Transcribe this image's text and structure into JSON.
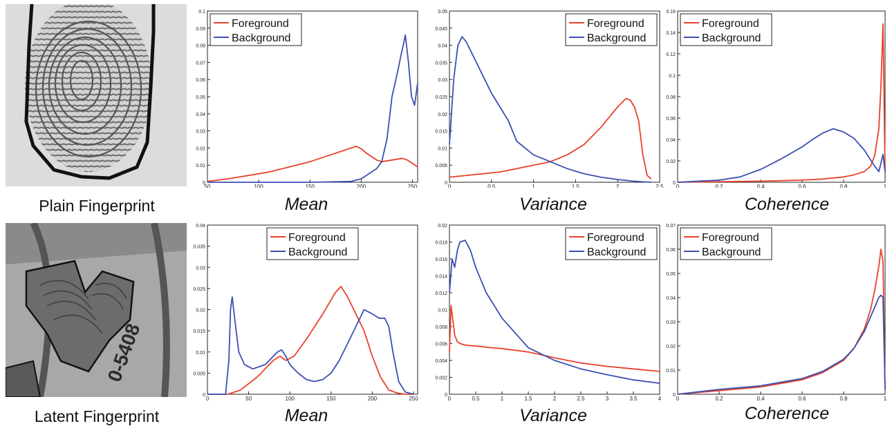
{
  "figure": {
    "colors": {
      "foreground": "#e8402a",
      "background": "#3a4fb0"
    },
    "captions": {
      "plain": "Plain Fingerprint",
      "latent": "Latent Fingerprint"
    },
    "images": [
      {
        "name": "plain-fingerprint-image",
        "kind": "plain"
      },
      {
        "name": "latent-fingerprint-image",
        "kind": "latent"
      }
    ]
  },
  "chart_data": [
    {
      "type": "line",
      "xlabel": "Mean",
      "xlim": [
        50,
        255
      ],
      "ylim": [
        0,
        0.1
      ],
      "xticks": [
        "50",
        "100",
        "150",
        "200",
        "250"
      ],
      "xtick_values": [
        50,
        100,
        150,
        200,
        250
      ],
      "yticks": [
        "0",
        "0.01",
        "0.02",
        "0.03",
        "0.04",
        "0.05",
        "0.06",
        "0.07",
        "0.08",
        "0.09",
        "0.1"
      ],
      "ytick_values": [
        0,
        0.01,
        0.02,
        0.03,
        0.04,
        0.05,
        0.06,
        0.07,
        0.08,
        0.09,
        0.1
      ],
      "legend": "top-left",
      "series": [
        {
          "name": "Foreground",
          "x": [
            50,
            70,
            90,
            110,
            130,
            150,
            160,
            170,
            180,
            190,
            195,
            200,
            205,
            210,
            215,
            220,
            230,
            240,
            245,
            250,
            255
          ],
          "y": [
            0.0005,
            0.002,
            0.004,
            0.006,
            0.009,
            0.012,
            0.014,
            0.016,
            0.018,
            0.02,
            0.021,
            0.0195,
            0.017,
            0.015,
            0.013,
            0.012,
            0.013,
            0.014,
            0.013,
            0.011,
            0.009
          ]
        },
        {
          "name": "Background",
          "x": [
            50,
            100,
            150,
            190,
            200,
            205,
            210,
            215,
            220,
            225,
            228,
            230,
            233,
            236,
            239,
            241,
            243,
            246,
            249,
            252,
            255
          ],
          "y": [
            0,
            0,
            0,
            0.0005,
            0.002,
            0.004,
            0.006,
            0.008,
            0.012,
            0.025,
            0.04,
            0.05,
            0.058,
            0.066,
            0.075,
            0.08,
            0.086,
            0.07,
            0.05,
            0.045,
            0.058
          ]
        }
      ]
    },
    {
      "type": "line",
      "xlabel": "Variance",
      "xlim": [
        0,
        2.5
      ],
      "ylim": [
        0,
        0.05
      ],
      "xticks": [
        "0",
        "0.5",
        "1",
        "1.5",
        "2",
        "2.5"
      ],
      "xtick_values": [
        0,
        0.5,
        1,
        1.5,
        2,
        2.5
      ],
      "yticks": [
        "0",
        "0.005",
        "0.01",
        "0.015",
        "0.02",
        "0.025",
        "0.03",
        "0.035",
        "0.04",
        "0.045",
        "0.05"
      ],
      "ytick_values": [
        0,
        0.005,
        0.01,
        0.015,
        0.02,
        0.025,
        0.03,
        0.035,
        0.04,
        0.045,
        0.05
      ],
      "legend": "top-right",
      "series": [
        {
          "name": "Foreground",
          "x": [
            0,
            0.2,
            0.4,
            0.6,
            0.8,
            1.0,
            1.2,
            1.4,
            1.6,
            1.8,
            1.9,
            2.0,
            2.1,
            2.15,
            2.2,
            2.25,
            2.3,
            2.35,
            2.4
          ],
          "y": [
            0.0015,
            0.002,
            0.0025,
            0.003,
            0.004,
            0.005,
            0.006,
            0.008,
            0.011,
            0.016,
            0.019,
            0.022,
            0.0245,
            0.024,
            0.022,
            0.018,
            0.008,
            0.002,
            0.001
          ]
        },
        {
          "name": "Background",
          "x": [
            0,
            0.05,
            0.1,
            0.15,
            0.2,
            0.3,
            0.4,
            0.5,
            0.6,
            0.7,
            0.8,
            0.9,
            1.0,
            1.2,
            1.4,
            1.6,
            1.8,
            2.0,
            2.2,
            2.4
          ],
          "y": [
            0.011,
            0.03,
            0.04,
            0.0425,
            0.041,
            0.036,
            0.031,
            0.026,
            0.022,
            0.018,
            0.012,
            0.01,
            0.008,
            0.006,
            0.004,
            0.0025,
            0.0015,
            0.0008,
            0.0003,
            0
          ]
        }
      ]
    },
    {
      "type": "line",
      "xlabel": "Coherence",
      "xlim": [
        0,
        1
      ],
      "ylim": [
        0,
        0.16
      ],
      "xticks": [
        "0",
        "0.2",
        "0.4",
        "0.6",
        "0.8",
        "1"
      ],
      "xtick_values": [
        0,
        0.2,
        0.4,
        0.6,
        0.8,
        1
      ],
      "yticks": [
        "0",
        "0.02",
        "0.04",
        "0.06",
        "0.08",
        "0.1",
        "0.12",
        "0.14",
        "0.16"
      ],
      "ytick_values": [
        0,
        0.02,
        0.04,
        0.06,
        0.08,
        0.1,
        0.12,
        0.14,
        0.16
      ],
      "legend": "top-left",
      "series": [
        {
          "name": "Foreground",
          "x": [
            0,
            0.2,
            0.4,
            0.6,
            0.7,
            0.8,
            0.85,
            0.9,
            0.93,
            0.95,
            0.97,
            0.98,
            0.99,
            1.0
          ],
          "y": [
            0,
            0.0005,
            0.001,
            0.002,
            0.003,
            0.005,
            0.007,
            0.01,
            0.015,
            0.025,
            0.05,
            0.09,
            0.148,
            0.01
          ]
        },
        {
          "name": "Background",
          "x": [
            0,
            0.2,
            0.3,
            0.4,
            0.5,
            0.6,
            0.65,
            0.7,
            0.75,
            0.8,
            0.85,
            0.9,
            0.95,
            0.97,
            0.99,
            1.0
          ],
          "y": [
            0,
            0.002,
            0.005,
            0.012,
            0.022,
            0.033,
            0.04,
            0.046,
            0.05,
            0.047,
            0.041,
            0.03,
            0.015,
            0.01,
            0.026,
            0.01
          ]
        }
      ]
    },
    {
      "type": "line",
      "xlabel": "Mean",
      "xlim": [
        0,
        255
      ],
      "ylim": [
        0,
        0.04
      ],
      "xticks": [
        "0",
        "50",
        "100",
        "150",
        "200",
        "250"
      ],
      "xtick_values": [
        0,
        50,
        100,
        150,
        200,
        250
      ],
      "yticks": [
        "0",
        "0.005",
        "0.01",
        "0.015",
        "0.02",
        "0.025",
        "0.03",
        "0.035",
        "0.04"
      ],
      "ytick_values": [
        0,
        0.005,
        0.01,
        0.015,
        0.02,
        0.025,
        0.03,
        0.035,
        0.04
      ],
      "legend": "top-center",
      "series": [
        {
          "name": "Foreground",
          "x": [
            0,
            25,
            40,
            60,
            80,
            88,
            95,
            105,
            120,
            140,
            155,
            162,
            170,
            180,
            190,
            200,
            210,
            220,
            230,
            240,
            250
          ],
          "y": [
            0,
            0,
            0.001,
            0.004,
            0.008,
            0.009,
            0.008,
            0.009,
            0.013,
            0.019,
            0.024,
            0.0255,
            0.023,
            0.019,
            0.015,
            0.009,
            0.004,
            0.001,
            0.0003,
            0,
            0
          ]
        },
        {
          "name": "Background",
          "x": [
            0,
            22,
            26,
            28,
            30,
            33,
            38,
            45,
            55,
            70,
            85,
            90,
            95,
            100,
            110,
            120,
            130,
            140,
            150,
            160,
            170,
            180,
            190,
            200,
            208,
            215,
            220,
            225,
            232,
            240,
            250
          ],
          "y": [
            0,
            0,
            0.008,
            0.02,
            0.023,
            0.018,
            0.01,
            0.007,
            0.006,
            0.007,
            0.01,
            0.0105,
            0.009,
            0.007,
            0.005,
            0.0035,
            0.003,
            0.0035,
            0.005,
            0.008,
            0.012,
            0.016,
            0.02,
            0.019,
            0.018,
            0.018,
            0.016,
            0.01,
            0.003,
            0.0005,
            0
          ]
        }
      ]
    },
    {
      "type": "line",
      "xlabel": "Variance",
      "xlim": [
        0,
        4
      ],
      "ylim": [
        0,
        0.02
      ],
      "xticks": [
        "0",
        "0.5",
        "1",
        "1.5",
        "2",
        "2.5",
        "3",
        "3.5",
        "4"
      ],
      "xtick_values": [
        0,
        0.5,
        1,
        1.5,
        2,
        2.5,
        3,
        3.5,
        4
      ],
      "yticks": [
        "0",
        "0.002",
        "0.004",
        "0.006",
        "0.008",
        "0.01",
        "0.012",
        "0.014",
        "0.016",
        "0.018",
        "0.02"
      ],
      "ytick_values": [
        0,
        0.002,
        0.004,
        0.006,
        0.008,
        0.01,
        0.012,
        0.014,
        0.016,
        0.018,
        0.02
      ],
      "legend": "top-right",
      "series": [
        {
          "name": "Foreground",
          "x": [
            0,
            0.03,
            0.06,
            0.1,
            0.15,
            0.2,
            0.3,
            0.5,
            0.8,
            1.0,
            1.5,
            2.0,
            2.5,
            3.0,
            3.5,
            4.0
          ],
          "y": [
            0.005,
            0.0105,
            0.009,
            0.007,
            0.0062,
            0.006,
            0.0058,
            0.0057,
            0.0055,
            0.0054,
            0.005,
            0.0043,
            0.0037,
            0.0033,
            0.003,
            0.0027
          ]
        },
        {
          "name": "Background",
          "x": [
            0,
            0.05,
            0.1,
            0.15,
            0.2,
            0.3,
            0.4,
            0.5,
            0.7,
            1.0,
            1.5,
            2.0,
            2.5,
            3.0,
            3.5,
            4.0
          ],
          "y": [
            0.012,
            0.016,
            0.015,
            0.017,
            0.018,
            0.0182,
            0.017,
            0.015,
            0.012,
            0.009,
            0.0055,
            0.004,
            0.003,
            0.0023,
            0.0017,
            0.0013
          ]
        }
      ]
    },
    {
      "type": "line",
      "xlabel": "Coherence",
      "xlim": [
        0,
        1
      ],
      "ylim": [
        0,
        0.07
      ],
      "xticks": [
        "0",
        "0.2",
        "0.4",
        "0.6",
        "0.8",
        "1"
      ],
      "xtick_values": [
        0,
        0.2,
        0.4,
        0.6,
        0.8,
        1
      ],
      "yticks": [
        "0",
        "0.01",
        "0.02",
        "0.03",
        "0.04",
        "0.05",
        "0.06",
        "0.07"
      ],
      "ytick_values": [
        0,
        0.01,
        0.02,
        0.03,
        0.04,
        0.05,
        0.06,
        0.07
      ],
      "legend": "top-left",
      "series": [
        {
          "name": "Foreground",
          "x": [
            0,
            0.2,
            0.4,
            0.6,
            0.7,
            0.8,
            0.85,
            0.9,
            0.93,
            0.95,
            0.97,
            0.98,
            0.99,
            1.0
          ],
          "y": [
            0,
            0.0015,
            0.003,
            0.006,
            0.009,
            0.014,
            0.019,
            0.027,
            0.035,
            0.043,
            0.053,
            0.06,
            0.055,
            0.002
          ]
        },
        {
          "name": "Background",
          "x": [
            0,
            0.2,
            0.4,
            0.6,
            0.7,
            0.8,
            0.85,
            0.9,
            0.93,
            0.95,
            0.97,
            0.98,
            0.99,
            1.0
          ],
          "y": [
            0,
            0.002,
            0.0035,
            0.0065,
            0.0095,
            0.0145,
            0.019,
            0.026,
            0.032,
            0.036,
            0.04,
            0.041,
            0.04,
            0.002
          ]
        }
      ]
    }
  ]
}
